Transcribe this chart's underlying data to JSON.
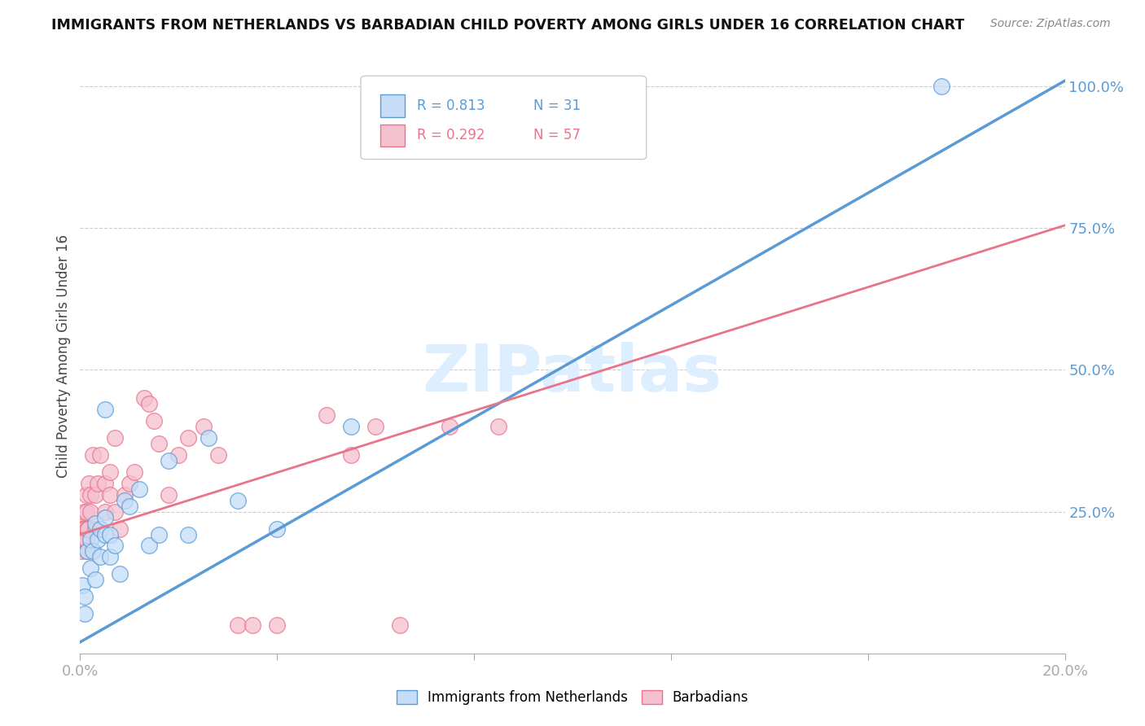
{
  "title": "IMMIGRANTS FROM NETHERLANDS VS BARBADIAN CHILD POVERTY AMONG GIRLS UNDER 16 CORRELATION CHART",
  "source": "Source: ZipAtlas.com",
  "ylabel": "Child Poverty Among Girls Under 16",
  "legend_label1": "Immigrants from Netherlands",
  "legend_label2": "Barbadians",
  "R1": "0.813",
  "N1": "31",
  "R2": "0.292",
  "N2": "57",
  "color_blue_fill": "#c5ddf7",
  "color_pink_fill": "#f5c0d0",
  "color_blue_edge": "#5b9bd5",
  "color_pink_edge": "#e8748a",
  "color_blue_line": "#5b9bd5",
  "color_pink_line": "#e8748a",
  "color_blue_text": "#5b9bd5",
  "color_pink_text": "#e8748a",
  "color_axis_text": "#5b9bd5",
  "watermark_text": "ZIPatlas",
  "watermark_color": "#ddeeff",
  "xmin": 0.0,
  "xmax": 0.2,
  "ymin": 0.0,
  "ymax": 1.05,
  "xticks": [
    0.0,
    0.04,
    0.08,
    0.12,
    0.16,
    0.2
  ],
  "xtick_labels": [
    "0.0%",
    "",
    "",
    "",
    "",
    "20.0%"
  ],
  "ytick_vals": [
    0.25,
    0.5,
    0.75,
    1.0
  ],
  "ytick_labels": [
    "25.0%",
    "50.0%",
    "75.0%",
    "100.0%"
  ],
  "blue_line_x": [
    0.0,
    0.2
  ],
  "blue_line_y": [
    0.02,
    1.01
  ],
  "pink_line_x": [
    0.0,
    0.2
  ],
  "pink_line_y": [
    0.21,
    0.755
  ],
  "blue_scatter_x": [
    0.0005,
    0.001,
    0.001,
    0.0015,
    0.002,
    0.002,
    0.0025,
    0.003,
    0.003,
    0.0035,
    0.004,
    0.004,
    0.005,
    0.005,
    0.005,
    0.006,
    0.006,
    0.007,
    0.008,
    0.009,
    0.01,
    0.012,
    0.014,
    0.016,
    0.018,
    0.022,
    0.026,
    0.032,
    0.04,
    0.055,
    0.175
  ],
  "blue_scatter_y": [
    0.12,
    0.1,
    0.07,
    0.18,
    0.2,
    0.15,
    0.18,
    0.23,
    0.13,
    0.2,
    0.22,
    0.17,
    0.21,
    0.43,
    0.24,
    0.17,
    0.21,
    0.19,
    0.14,
    0.27,
    0.26,
    0.29,
    0.19,
    0.21,
    0.34,
    0.21,
    0.38,
    0.27,
    0.22,
    0.4,
    1.0
  ],
  "pink_scatter_x": [
    0.0001,
    0.0002,
    0.0003,
    0.0003,
    0.0004,
    0.0004,
    0.0005,
    0.0005,
    0.0006,
    0.0006,
    0.0007,
    0.0008,
    0.001,
    0.001,
    0.0012,
    0.0012,
    0.0013,
    0.0015,
    0.0015,
    0.0016,
    0.0018,
    0.002,
    0.002,
    0.0025,
    0.003,
    0.003,
    0.0035,
    0.004,
    0.004,
    0.005,
    0.005,
    0.006,
    0.006,
    0.007,
    0.007,
    0.008,
    0.009,
    0.01,
    0.011,
    0.013,
    0.014,
    0.015,
    0.016,
    0.018,
    0.02,
    0.022,
    0.025,
    0.028,
    0.032,
    0.035,
    0.04,
    0.05,
    0.055,
    0.06,
    0.065,
    0.075,
    0.085
  ],
  "pink_scatter_y": [
    0.2,
    0.22,
    0.18,
    0.21,
    0.2,
    0.23,
    0.19,
    0.22,
    0.22,
    0.2,
    0.2,
    0.25,
    0.22,
    0.2,
    0.25,
    0.28,
    0.2,
    0.22,
    0.18,
    0.22,
    0.3,
    0.25,
    0.28,
    0.35,
    0.22,
    0.28,
    0.3,
    0.22,
    0.35,
    0.25,
    0.3,
    0.28,
    0.32,
    0.25,
    0.38,
    0.22,
    0.28,
    0.3,
    0.32,
    0.45,
    0.44,
    0.41,
    0.37,
    0.28,
    0.35,
    0.38,
    0.4,
    0.35,
    0.05,
    0.05,
    0.05,
    0.42,
    0.35,
    0.4,
    0.05,
    0.4,
    0.4
  ]
}
